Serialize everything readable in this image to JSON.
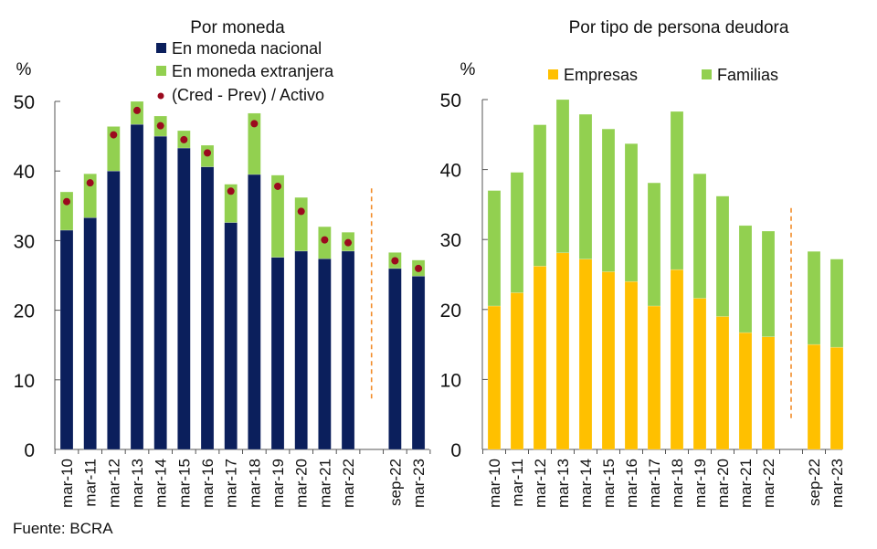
{
  "source": "Fuente: BCRA",
  "chart_data": [
    {
      "type": "bar",
      "stacked": true,
      "title": "Por moneda",
      "ylabel": "%",
      "ylim": [
        0,
        50
      ],
      "yticks": [
        0,
        10,
        20,
        30,
        40,
        50
      ],
      "categories": [
        "mar-10",
        "mar-11",
        "mar-12",
        "mar-13",
        "mar-14",
        "mar-15",
        "mar-16",
        "mar-17",
        "mar-18",
        "mar-19",
        "mar-20",
        "mar-21",
        "mar-22",
        "sep-22",
        "mar-23"
      ],
      "break_after": "mar-22",
      "legend_position": "top",
      "series": [
        {
          "name": "En moneda nacional",
          "color": "#0b1f5c",
          "values": [
            31.5,
            33.3,
            40.0,
            46.7,
            45.0,
            43.3,
            40.6,
            32.6,
            39.5,
            27.6,
            28.5,
            27.4,
            28.5,
            26.0,
            24.9
          ]
        },
        {
          "name": "En moneda extranjera",
          "color": "#92d050",
          "values": [
            5.5,
            6.3,
            6.4,
            3.3,
            2.9,
            2.5,
            3.1,
            5.5,
            8.8,
            11.8,
            7.7,
            4.6,
            2.7,
            2.3,
            2.3
          ]
        },
        {
          "name": "(Cred - Prev) / Activo",
          "type": "scatter",
          "color": "#9b0a1e",
          "values": [
            35.6,
            38.3,
            45.2,
            48.7,
            46.5,
            44.5,
            42.6,
            37.1,
            46.8,
            37.8,
            34.2,
            30.1,
            29.7,
            27.1,
            26.0
          ]
        }
      ]
    },
    {
      "type": "bar",
      "stacked": true,
      "title": "Por tipo de persona deudora",
      "ylabel": "%",
      "ylim": [
        0,
        50
      ],
      "yticks": [
        0,
        10,
        20,
        30,
        40,
        50
      ],
      "categories": [
        "mar-10",
        "mar-11",
        "mar-12",
        "mar-13",
        "mar-14",
        "mar-15",
        "mar-16",
        "mar-17",
        "mar-18",
        "mar-19",
        "mar-20",
        "mar-21",
        "mar-22",
        "sep-22",
        "mar-23"
      ],
      "break_after": "mar-22",
      "legend_position": "top",
      "series": [
        {
          "name": "Empresas",
          "color": "#ffc000",
          "values": [
            20.5,
            22.4,
            26.2,
            28.1,
            27.2,
            25.4,
            24.0,
            20.5,
            25.7,
            21.6,
            19.0,
            16.7,
            16.1,
            15.0,
            14.6
          ]
        },
        {
          "name": "Familias",
          "color": "#92d050",
          "values": [
            16.5,
            17.2,
            20.2,
            21.9,
            20.7,
            20.4,
            19.7,
            17.6,
            22.6,
            17.8,
            17.2,
            15.3,
            15.1,
            13.3,
            12.6
          ]
        }
      ]
    }
  ]
}
